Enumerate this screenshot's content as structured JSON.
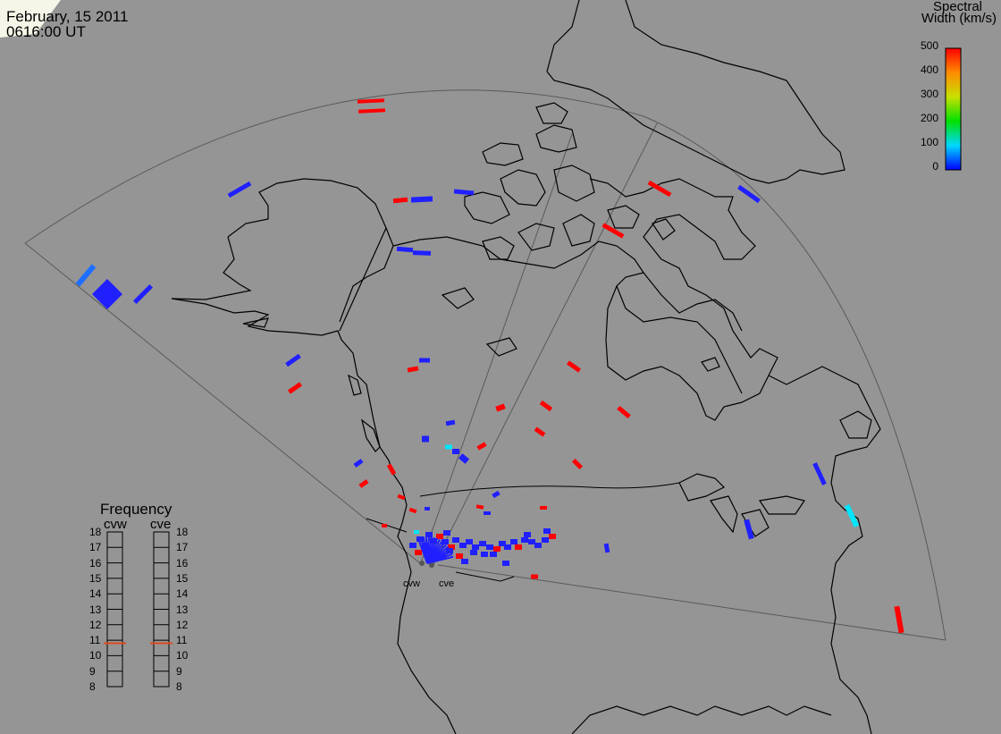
{
  "header": {
    "date": "February, 15 2011",
    "time": "0616:00 UT"
  },
  "colorbar": {
    "title_line1": "Spectral",
    "title_line2": "Width (km/s)",
    "ticks": [
      "500",
      "400",
      "300",
      "200",
      "100",
      "0"
    ],
    "range": [
      0,
      500
    ]
  },
  "frequency": {
    "title": "Frequency",
    "radars": [
      {
        "label": "cvw",
        "current_mhz": 10.8
      },
      {
        "label": "cve",
        "current_mhz": 10.8
      }
    ],
    "scale": [
      "18",
      "17",
      "16",
      "15",
      "14",
      "13",
      "12",
      "11",
      "10",
      "9",
      "8"
    ],
    "indicator_color": "#e04a1e"
  },
  "sites": [
    "cvw",
    "cve"
  ],
  "colors": {
    "background": "#959595",
    "red": "#ff0000",
    "blue": "#2020ff",
    "cyan": "#00e6ff",
    "lightblue": "#1e6fff",
    "lines": "#000000",
    "fov": "#555555"
  }
}
